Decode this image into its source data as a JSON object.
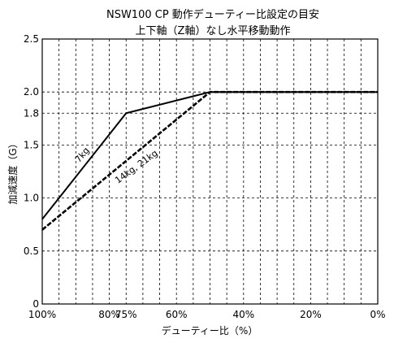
{
  "chart_data": {
    "type": "line",
    "title_line1": "NSW100 CP 動作デューティー比設定の目安",
    "title_line2": "上下軸（Z軸）なし水平移動動作",
    "xlabel": "デューティー比（%）",
    "ylabel": "加減速度（G）",
    "xlim": [
      100,
      0
    ],
    "ylim": [
      0,
      2.5
    ],
    "x_ticks": [
      {
        "value": 100,
        "label": "100%"
      },
      {
        "value": 80,
        "label": "80%"
      },
      {
        "value": 75,
        "label": "75%"
      },
      {
        "value": 60,
        "label": "60%"
      },
      {
        "value": 40,
        "label": "40%"
      },
      {
        "value": 20,
        "label": "20%"
      },
      {
        "value": 0,
        "label": "0%"
      }
    ],
    "x_gridlines": [
      95,
      90,
      85,
      80,
      75,
      70,
      65,
      60,
      55,
      50,
      45,
      40,
      35,
      30,
      25,
      20,
      15,
      10,
      5
    ],
    "y_ticks": [
      {
        "value": 0,
        "label": "0"
      },
      {
        "value": 0.5,
        "label": "0.5"
      },
      {
        "value": 1.0,
        "label": "1.0"
      },
      {
        "value": 1.5,
        "label": "1.5"
      },
      {
        "value": 1.8,
        "label": "1.8"
      },
      {
        "value": 2.0,
        "label": "2.0"
      },
      {
        "value": 2.5,
        "label": "2.5"
      }
    ],
    "y_gridlines": [
      0.5,
      1.0,
      1.5,
      1.8,
      2.0
    ],
    "grid": true,
    "series": [
      {
        "name": "7kg",
        "style": "solid",
        "color": "#000000",
        "x": [
          100,
          75,
          50,
          0
        ],
        "y": [
          0.8,
          1.8,
          2.0,
          2.0
        ]
      },
      {
        "name": "14kg, 21kg",
        "style": "dashed",
        "color": "#000000",
        "x": [
          100,
          50,
          0
        ],
        "y": [
          0.7,
          2.0,
          2.0
        ]
      }
    ]
  }
}
